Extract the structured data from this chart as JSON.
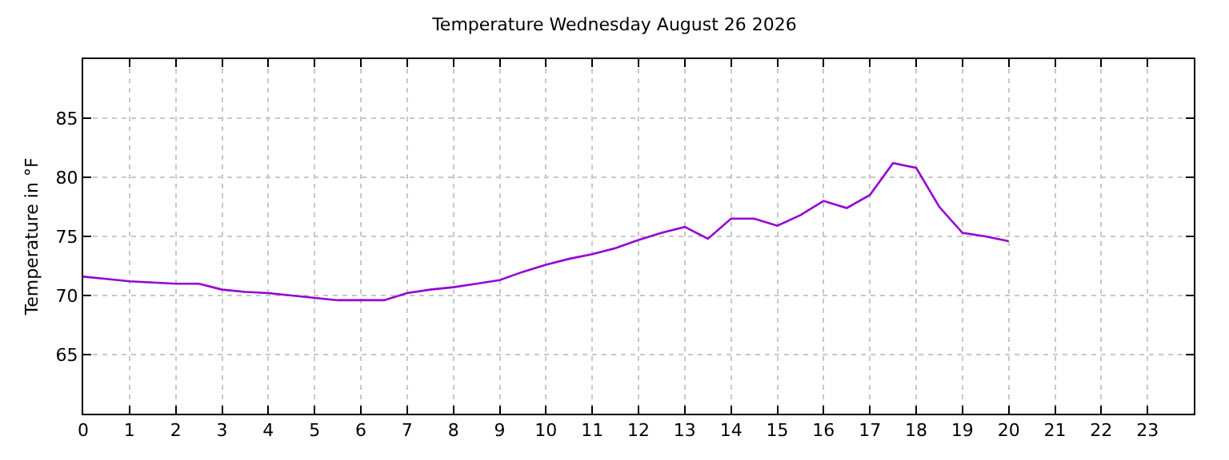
{
  "chart_data": {
    "type": "line",
    "title": "Temperature Wednesday August 26 2026",
    "ylabel": "Temperature in °F",
    "x": [
      0,
      0.5,
      1,
      1.5,
      2,
      2.5,
      3,
      3.5,
      4,
      4.5,
      5,
      5.5,
      6,
      6.5,
      7,
      7.5,
      8,
      8.5,
      9,
      9.5,
      10,
      10.5,
      11,
      11.5,
      12,
      12.5,
      13,
      13.5,
      14,
      14.5,
      15,
      15.5,
      16,
      16.5,
      17,
      17.5,
      18,
      18.5,
      19,
      19.5,
      20
    ],
    "series": [
      {
        "color": "#9400d3",
        "values": [
          71.6,
          71.4,
          71.2,
          71.1,
          71.0,
          71.0,
          70.5,
          70.3,
          70.2,
          70.0,
          69.8,
          69.6,
          69.6,
          69.6,
          70.2,
          70.5,
          70.7,
          71.0,
          71.3,
          72.0,
          72.6,
          73.1,
          73.5,
          74.0,
          74.7,
          75.3,
          75.8,
          74.8,
          76.5,
          76.5,
          75.9,
          76.8,
          78.0,
          77.4,
          78.5,
          81.2,
          80.8,
          77.5,
          75.3,
          75.0,
          74.6
        ]
      }
    ],
    "xlim": [
      0,
      24
    ],
    "xticks": [
      0,
      1,
      2,
      3,
      4,
      5,
      6,
      7,
      8,
      9,
      10,
      11,
      12,
      13,
      14,
      15,
      16,
      17,
      18,
      19,
      20,
      21,
      22,
      23
    ],
    "ylim": [
      60,
      90
    ],
    "yticks": [
      65,
      70,
      75,
      80,
      85
    ],
    "grid": true,
    "marker": "none",
    "line_style": "solid"
  }
}
